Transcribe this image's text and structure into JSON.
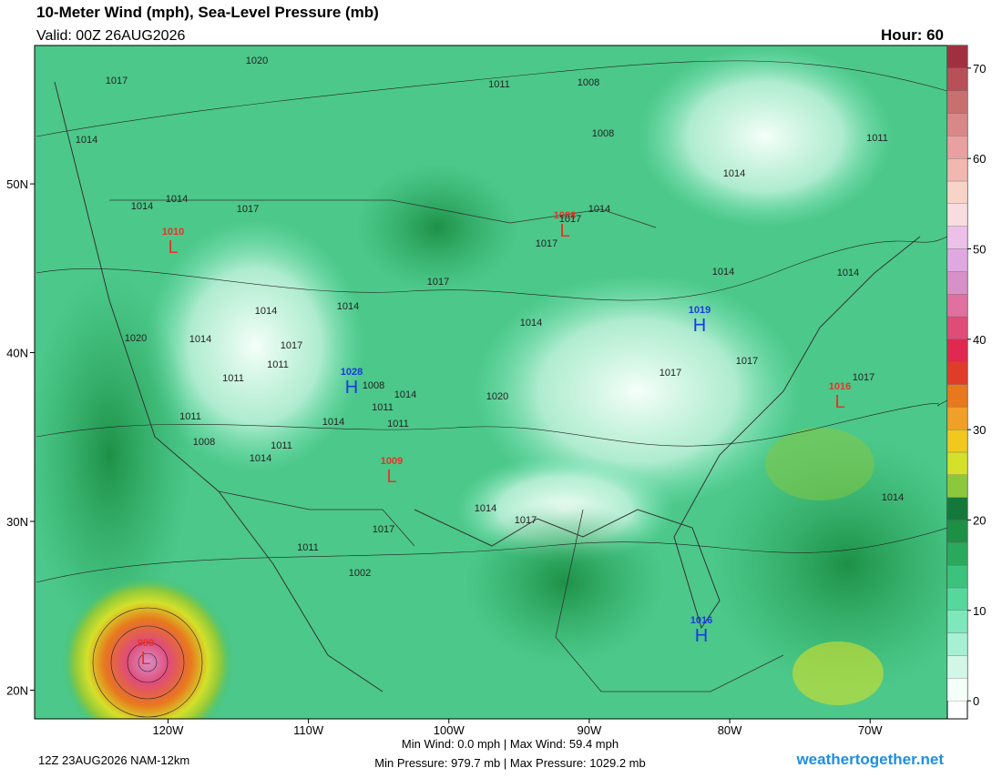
{
  "header": {
    "title": "10-Meter Wind (mph), Sea-Level Pressure (mb)",
    "valid": "Valid: 00Z 26AUG2026",
    "hour": "Hour: 60"
  },
  "map": {
    "lonlim": [
      -129.5,
      -64.5
    ],
    "latlim": [
      18.3,
      58.2
    ],
    "lat_ticks": [
      {
        "value": 50,
        "label": "50N"
      },
      {
        "value": 40,
        "label": "40N"
      },
      {
        "value": 30,
        "label": "30N"
      },
      {
        "value": 20,
        "label": "20N"
      }
    ],
    "lon_ticks": [
      {
        "value": -120,
        "label": "120W"
      },
      {
        "value": -110,
        "label": "110W"
      },
      {
        "value": -100,
        "label": "100W"
      },
      {
        "value": -90,
        "label": "90W"
      },
      {
        "value": -80,
        "label": "80W"
      },
      {
        "value": -70,
        "label": "70W"
      }
    ],
    "centers": [
      {
        "kind": "L",
        "value": 1010,
        "color": "#e8322a"
      },
      {
        "kind": "L",
        "value": 1008,
        "color": "#e8322a"
      },
      {
        "kind": "H",
        "value": 1019,
        "color": "#1a3ae0"
      },
      {
        "kind": "H",
        "value": 1028,
        "color": "#1a3ae0"
      },
      {
        "kind": "L",
        "value": 1016,
        "color": "#e8322a"
      },
      {
        "kind": "L",
        "value": 1009,
        "color": "#e8322a"
      },
      {
        "kind": "H",
        "value": 1016,
        "color": "#1a3ae0"
      },
      {
        "kind": "L",
        "value": 980,
        "color": "#e8322a"
      }
    ],
    "contour_labels": [
      1020,
      1017,
      1011,
      1008,
      1008,
      1014,
      1011,
      1014,
      1014,
      1017,
      1014,
      1017,
      1014,
      1017,
      1014,
      1014,
      1017,
      1014,
      1014,
      1014,
      1020,
      1014,
      1017,
      1017,
      1017,
      1017,
      1011,
      1011,
      1008,
      1014,
      1011,
      1011,
      1014,
      1020,
      1011,
      1008,
      1011,
      1014,
      1014,
      1017,
      1014,
      1017,
      1011,
      1002
    ]
  },
  "colorbar": {
    "lim": [
      -2,
      72.5
    ],
    "step": 2.5,
    "ticks": [
      0,
      10,
      20,
      30,
      40,
      50,
      60,
      70
    ],
    "colors": [
      "#f5fff9",
      "#d2f7e6",
      "#a8f0d4",
      "#7ee8bc",
      "#56d89c",
      "#3cc27c",
      "#2aa85e",
      "#1d9046",
      "#14783a",
      "#8cc83c",
      "#d4e02a",
      "#f0c81e",
      "#f0a028",
      "#e8781e",
      "#e03c2a",
      "#e02850",
      "#e04c78",
      "#e070a0",
      "#d890c8",
      "#e0a8e0",
      "#ecc0e8",
      "#f8dce0",
      "#f8d4c8",
      "#f0b8b0",
      "#e8a0a0",
      "#d88888",
      "#c87070",
      "#b85058",
      "#a03040"
    ]
  },
  "footer": {
    "run": "12Z 23AUG2026 NAM-12km",
    "wind": "Min Wind:  0.0 mph | Max Wind:  59.4 mph",
    "pressure": "Min Pressure: 979.7 mb | Max Pressure: 1029.2 mb",
    "site": "weathertogether.net"
  }
}
